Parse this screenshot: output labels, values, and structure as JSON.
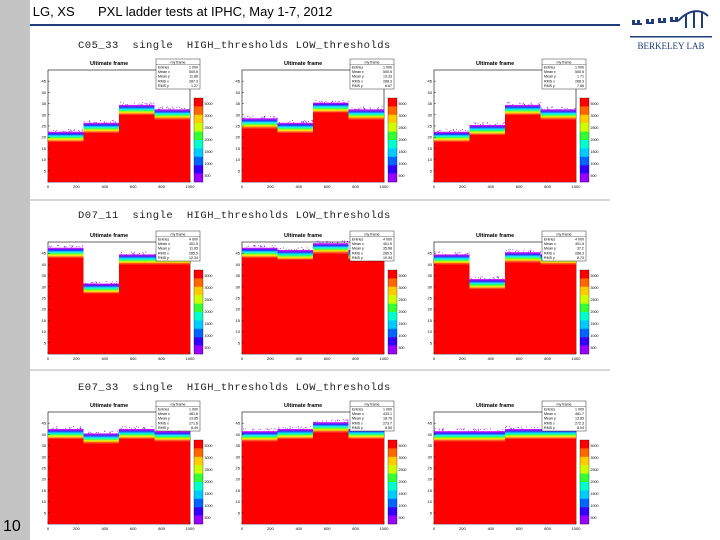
{
  "header": {
    "authors": "MS, LG, XS",
    "title": "PXL ladder tests at IPHC, May 1-7, 2012"
  },
  "logo": {
    "text": "BERKELEY LAB",
    "color": "#1f3d7a"
  },
  "page_number": "10",
  "colors": {
    "header_rule": "#1f3d7a",
    "sidebar": "#c4c4c4",
    "fill": "#ff0000"
  },
  "sections": [
    {
      "label": "C05_33  single  HIGH_thresholds LOW_thresholds"
    },
    {
      "label": "D07_11  single  HIGH_thresholds LOW_thresholds"
    },
    {
      "label": "E07_33  single  HIGH_thresholds LOW_thresholds"
    }
  ],
  "chart_data": [
    {
      "type": "heatmap",
      "title": "Ultimate frame",
      "stats_title": "my frame",
      "stats": [
        [
          "Entries",
          "1 000"
        ],
        [
          "Mean x",
          "500.5"
        ],
        [
          "Mean y",
          "11.86"
        ],
        [
          "RMS x",
          "287.3"
        ],
        [
          "RMS y",
          "1.27"
        ]
      ],
      "x_ticks": [
        "0",
        "200",
        "400",
        "600",
        "800",
        "1000"
      ],
      "y_ticks": [
        "5",
        "10",
        "15",
        "20",
        "25",
        "30",
        "35",
        "40",
        "45"
      ],
      "ylim": [
        0,
        50
      ],
      "xlim": [
        0,
        1000
      ],
      "color_scale": [
        "5000",
        "3000",
        "2500",
        "2000",
        "1500",
        "1000",
        "500"
      ],
      "segments": [
        18,
        22,
        30,
        28
      ]
    },
    {
      "type": "heatmap",
      "title": "Ultimate frame",
      "stats_title": "my frame",
      "stats": [
        [
          "Entries",
          "1 000"
        ],
        [
          "Mean x",
          "500.5"
        ],
        [
          "Mean y",
          "13.33"
        ],
        [
          "RMS x",
          "288.3"
        ],
        [
          "RMS y",
          "6.67"
        ]
      ],
      "x_ticks": [
        "0",
        "200",
        "400",
        "600",
        "800",
        "1000"
      ],
      "y_ticks": [
        "5",
        "10",
        "15",
        "20",
        "25",
        "30",
        "35",
        "40",
        "45"
      ],
      "ylim": [
        0,
        50
      ],
      "xlim": [
        0,
        1000
      ],
      "color_scale": [
        "5000",
        "3000",
        "2500",
        "2000",
        "1500",
        "1000",
        "500"
      ],
      "segments": [
        24,
        22,
        31,
        28
      ]
    },
    {
      "type": "heatmap",
      "title": "Ultimate frame",
      "stats_title": "my frame",
      "stats": [
        [
          "Entries",
          "1 000"
        ],
        [
          "Mean x",
          "500.5"
        ],
        [
          "Mean y",
          "1.71"
        ],
        [
          "RMS x",
          "288.3"
        ],
        [
          "RMS y",
          "7.66"
        ]
      ],
      "x_ticks": [
        "0",
        "200",
        "400",
        "600",
        "800",
        "1000"
      ],
      "y_ticks": [
        "5",
        "10",
        "15",
        "20",
        "25",
        "30",
        "35",
        "40",
        "45"
      ],
      "ylim": [
        0,
        50
      ],
      "xlim": [
        0,
        1000
      ],
      "color_scale": [
        "5000",
        "3000",
        "2500",
        "2000",
        "1500",
        "1000",
        "500"
      ],
      "segments": [
        18,
        21,
        30,
        28
      ]
    },
    {
      "type": "heatmap",
      "title": "Ultimate frame",
      "stats_title": "my frame",
      "stats": [
        [
          "Entries",
          "4 000"
        ],
        [
          "Mean x",
          "401.5"
        ],
        [
          "Mean y",
          "11.65"
        ],
        [
          "RMS x",
          "285.5"
        ],
        [
          "RMS y",
          "12.34"
        ]
      ],
      "x_ticks": [
        "0",
        "200",
        "400",
        "600",
        "800",
        "1000"
      ],
      "y_ticks": [
        "5",
        "10",
        "15",
        "20",
        "25",
        "30",
        "35",
        "40",
        "45"
      ],
      "ylim": [
        0,
        50
      ],
      "xlim": [
        0,
        1000
      ],
      "color_scale": [
        "5000",
        "3000",
        "2500",
        "2000",
        "1500",
        "1000",
        "500"
      ],
      "segments": [
        43,
        27,
        40,
        40
      ]
    },
    {
      "type": "heatmap",
      "title": "Ultimate frame",
      "stats_title": "my frame",
      "stats": [
        [
          "Entries",
          "4 000"
        ],
        [
          "Mean x",
          "401.5"
        ],
        [
          "Mean y",
          "35.68"
        ],
        [
          "RMS x",
          "285.5"
        ],
        [
          "RMS y",
          "10.34"
        ]
      ],
      "x_ticks": [
        "0",
        "200",
        "400",
        "600",
        "800",
        "1000"
      ],
      "y_ticks": [
        "5",
        "10",
        "15",
        "20",
        "25",
        "30",
        "35",
        "40",
        "45"
      ],
      "ylim": [
        0,
        50
      ],
      "xlim": [
        0,
        1000
      ],
      "color_scale": [
        "5000",
        "3000",
        "2500",
        "2000",
        "1500",
        "1000",
        "500"
      ],
      "segments": [
        43,
        42,
        45,
        42
      ]
    },
    {
      "type": "heatmap",
      "title": "Ultimate frame",
      "stats_title": "my frame",
      "stats": [
        [
          "Entries",
          "4 000"
        ],
        [
          "Mean x",
          "401.5"
        ],
        [
          "Mean y",
          "37.2"
        ],
        [
          "RMS x",
          "288.3"
        ],
        [
          "RMS y",
          "8.73"
        ]
      ],
      "x_ticks": [
        "0",
        "200",
        "400",
        "600",
        "800",
        "1000"
      ],
      "y_ticks": [
        "5",
        "10",
        "15",
        "20",
        "25",
        "30",
        "35",
        "40",
        "45"
      ],
      "ylim": [
        0,
        50
      ],
      "xlim": [
        0,
        1000
      ],
      "color_scale": [
        "5000",
        "3000",
        "2500",
        "2000",
        "1500",
        "1000",
        "500"
      ],
      "segments": [
        40,
        29,
        41,
        40
      ]
    },
    {
      "type": "heatmap",
      "title": "Ultimate frame",
      "stats_title": "my frame",
      "stats": [
        [
          "Entries",
          "1 000"
        ],
        [
          "Mean x",
          "481.6"
        ],
        [
          "Mean y",
          "13.85"
        ],
        [
          "RMS x",
          "271.6"
        ],
        [
          "RMS y",
          "8.49"
        ]
      ],
      "x_ticks": [
        "0",
        "200",
        "400",
        "600",
        "800",
        "1000"
      ],
      "y_ticks": [
        "5",
        "10",
        "15",
        "20",
        "25",
        "30",
        "35",
        "40",
        "45"
      ],
      "ylim": [
        0,
        50
      ],
      "xlim": [
        0,
        1000
      ],
      "color_scale": [
        "5000",
        "3000",
        "2500",
        "2000",
        "1500",
        "1000",
        "500"
      ],
      "segments": [
        38,
        36,
        38,
        37
      ]
    },
    {
      "type": "heatmap",
      "title": "Ultimate frame",
      "stats_title": "my frame",
      "stats": [
        [
          "Entries",
          "1 000"
        ],
        [
          "Mean x",
          "433.1"
        ],
        [
          "Mean y",
          "18.76"
        ],
        [
          "RMS x",
          "273.7"
        ],
        [
          "RMS y",
          "8.50"
        ]
      ],
      "x_ticks": [
        "0",
        "200",
        "400",
        "600",
        "800",
        "1000"
      ],
      "y_ticks": [
        "5",
        "10",
        "15",
        "20",
        "25",
        "30",
        "35",
        "40",
        "45"
      ],
      "ylim": [
        0,
        50
      ],
      "xlim": [
        0,
        1000
      ],
      "color_scale": [
        "5000",
        "3000",
        "2500",
        "2000",
        "1500",
        "1000",
        "500"
      ],
      "segments": [
        37,
        38,
        41,
        38
      ]
    },
    {
      "type": "heatmap",
      "title": "Ultimate frame",
      "stats_title": "my frame",
      "stats": [
        [
          "Entries",
          "1 000"
        ],
        [
          "Mean x",
          "481.7"
        ],
        [
          "Mean y",
          "13.85"
        ],
        [
          "RMS x",
          "272.3"
        ],
        [
          "RMS y",
          "8.04"
        ]
      ],
      "x_ticks": [
        "0",
        "200",
        "400",
        "600",
        "800",
        "1000"
      ],
      "y_ticks": [
        "5",
        "10",
        "15",
        "20",
        "25",
        "30",
        "35",
        "40",
        "45"
      ],
      "ylim": [
        0,
        50
      ],
      "xlim": [
        0,
        1000
      ],
      "color_scale": [
        "5000",
        "3000",
        "2500",
        "2000",
        "1500",
        "1000",
        "500"
      ],
      "segments": [
        37,
        37,
        38,
        38
      ]
    }
  ]
}
